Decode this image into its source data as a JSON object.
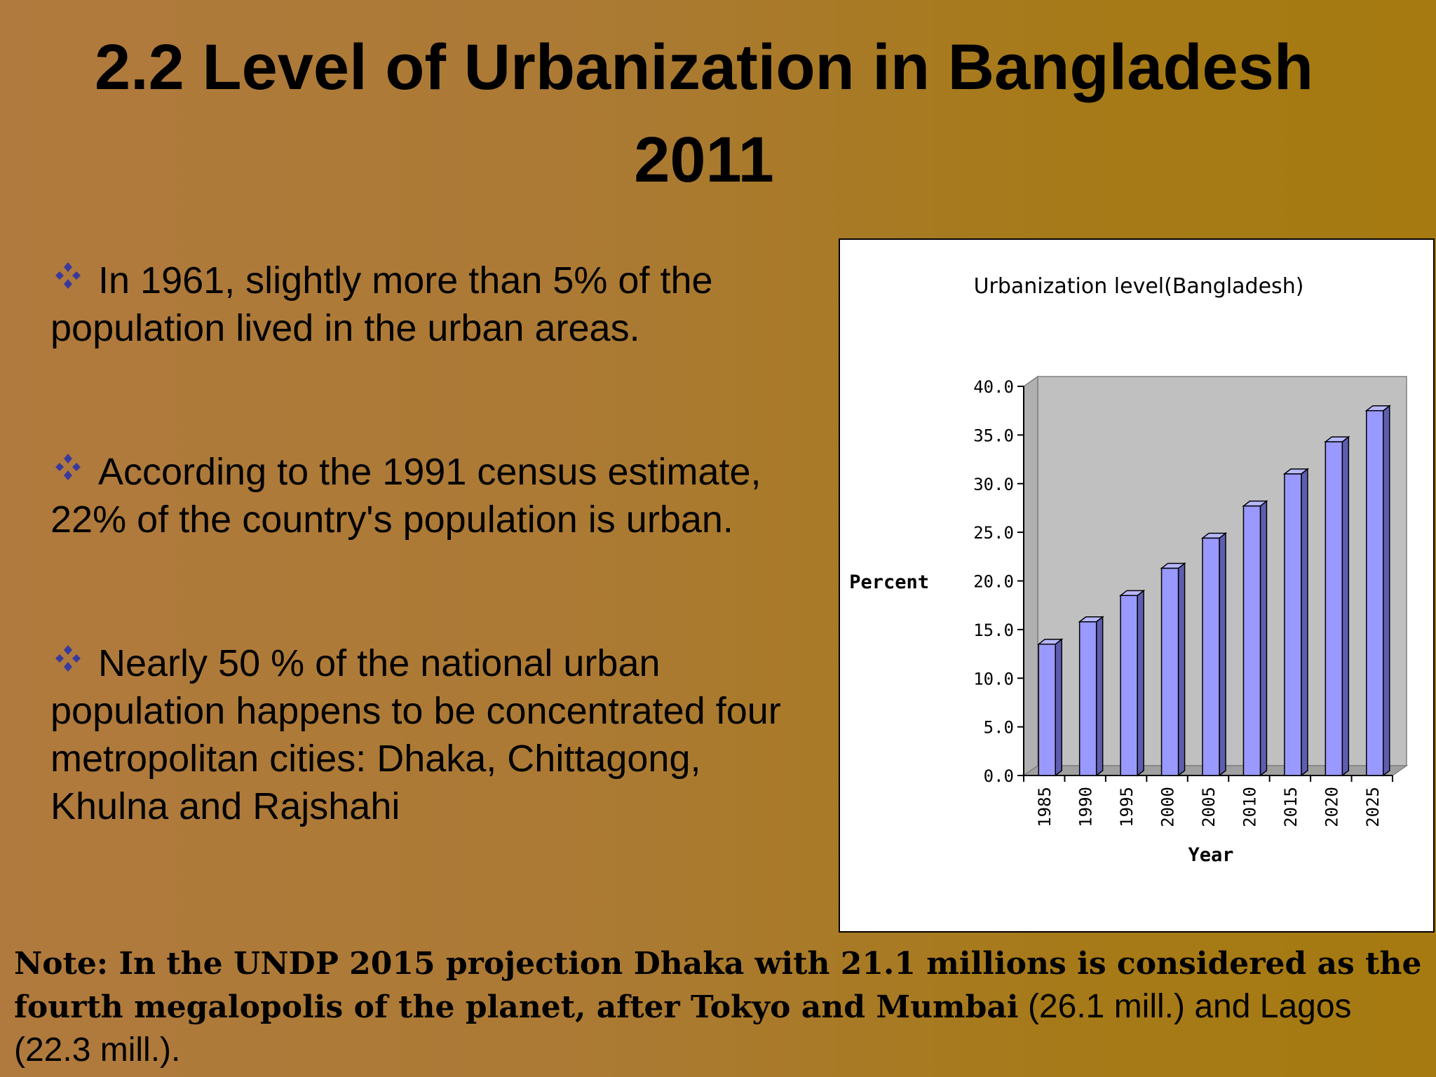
{
  "slide": {
    "title_line1": "2.2 Level of Urbanization in Bangladesh",
    "title_line2": "2011"
  },
  "bullets": [
    {
      "icon": "four-diamond-icon",
      "text": "In 1961, slightly more than 5% of the population lived in the urban areas."
    },
    {
      "icon": "four-diamond-icon",
      "text": "According to the 1991 census estimate, 22% of the country's population is urban."
    },
    {
      "icon": "four-diamond-icon",
      "text": "Nearly 50 % of the national urban population happens to be concentrated four metropolitan cities: Dhaka, Chittagong, Khulna and Rajshahi"
    }
  ],
  "note": {
    "bold": "Note: In the UNDP 2015 projection Dhaka with 21.1 millions is considered as the fourth megalopolis of the planet, after Tokyo and Mumbai",
    "regular": " (26.1 mill.) and Lagos (22.3 mill.)."
  },
  "colors": {
    "bullet_icon": "#3a3a9c",
    "bar_fill": "#9999ff",
    "bar_side": "#5e5eb0",
    "plot_wall": "#c0c0c0",
    "plot_floor": "#a0a0a0"
  },
  "chart_data": {
    "type": "bar",
    "style": "3d-column",
    "title": "Urbanization level(Bangladesh)",
    "xlabel": "Year",
    "ylabel": "Percent",
    "categories": [
      "1985",
      "1990",
      "1995",
      "2000",
      "2005",
      "2010",
      "2015",
      "2020",
      "2025"
    ],
    "values": [
      13.5,
      15.8,
      18.5,
      21.3,
      24.4,
      27.7,
      31.0,
      34.3,
      37.5
    ],
    "ylim": [
      0,
      40
    ],
    "yticks": [
      "0.0",
      "5.0",
      "10.0",
      "15.0",
      "20.0",
      "25.0",
      "30.0",
      "35.0",
      "40.0"
    ],
    "grid": false,
    "legend": "none"
  }
}
